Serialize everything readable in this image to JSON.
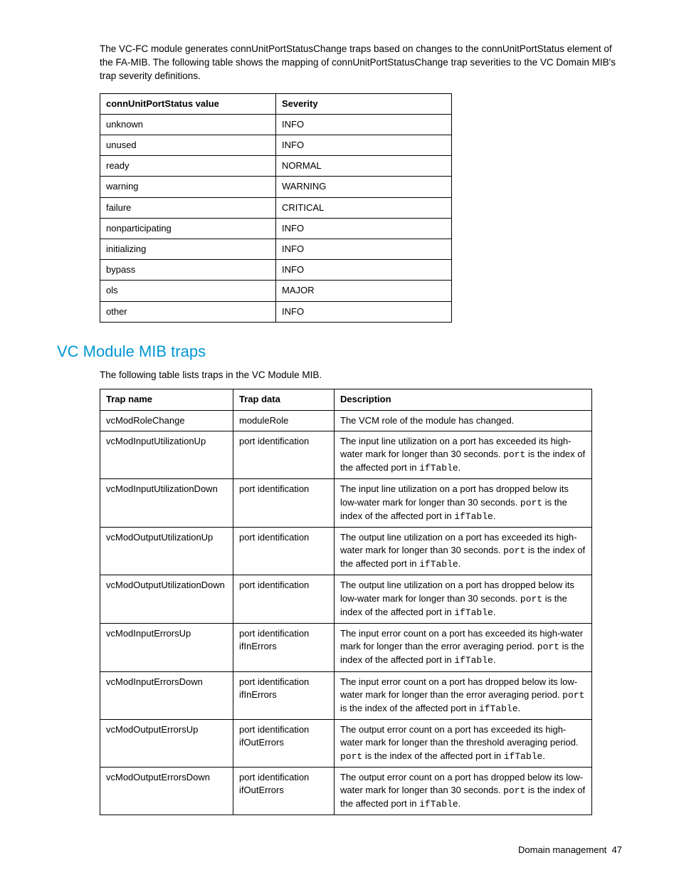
{
  "intro": "The VC-FC module generates connUnitPortStatusChange traps based on changes to the connUnitPortStatus element of the FA-MIB. The following table shows the mapping of connUnitPortStatusChange trap severities to the VC Domain MIB's trap severity definitions.",
  "table1": {
    "headers": [
      "connUnitPortStatus value",
      "Severity"
    ],
    "rows": [
      [
        "unknown",
        "INFO"
      ],
      [
        "unused",
        "INFO"
      ],
      [
        "ready",
        "NORMAL"
      ],
      [
        "warning",
        "WARNING"
      ],
      [
        "failure",
        "CRITICAL"
      ],
      [
        "nonparticipating",
        "INFO"
      ],
      [
        "initializing",
        "INFO"
      ],
      [
        "bypass",
        "INFO"
      ],
      [
        "ols",
        "MAJOR"
      ],
      [
        "other",
        "INFO"
      ]
    ]
  },
  "section_title": "VC Module MIB traps",
  "section_sub": "The following table lists traps in the VC Module MIB.",
  "table2": {
    "headers": [
      "Trap name",
      "Trap data",
      "Description"
    ],
    "rows": [
      {
        "name": "vcModRoleChange",
        "data": "moduleRole",
        "desc": "The VCM role of the module has changed."
      },
      {
        "name": "vcModInputUtilizationUp",
        "data": "port identification",
        "desc": "The input line utilization on a port has exceeded its high-water mark for longer than 30 seconds. <code>port</code> is the index of the affected port in <code>ifTable</code>."
      },
      {
        "name": "vcModInputUtilizationDown",
        "data": "port identification",
        "desc": "The input line utilization on a port has dropped below its low-water mark for longer than 30 seconds. <code>port</code> is the index of the affected port in <code>ifTable</code>."
      },
      {
        "name": "vcModOutputUtilizationUp",
        "data": "port identification",
        "desc": "The output line utilization on a port has exceeded its high-water mark for longer than 30 seconds. <code>port</code> is the index of the affected port in <code>ifTable</code>."
      },
      {
        "name": "vcModOutputUtilizationDown",
        "data": "port identification",
        "desc": "The output line utilization on a port has dropped below its low-water mark for longer than 30 seconds. <code>port</code> is the index of the affected port in <code>ifTable</code>."
      },
      {
        "name": "vcModInputErrorsUp",
        "data": "port identification ifInErrors",
        "desc": "The input error count on a port has exceeded its high-water mark for longer than the error averaging period. <code>port</code> is the index of the affected port in <code>ifTable</code>."
      },
      {
        "name": "vcModInputErrorsDown",
        "data": "port identification ifInErrors",
        "desc": "The input error count on a port has dropped below its low-water mark for longer than the error averaging period. <code>port</code> is the index of the affected port in <code>ifTable</code>."
      },
      {
        "name": "vcModOutputErrorsUp",
        "data": "port identification ifOutErrors",
        "desc": "The output error count on a port has exceeded its high-water mark for longer than the threshold averaging period. <code>port</code> is the index of the affected port in <code>ifTable</code>."
      },
      {
        "name": "vcModOutputErrorsDown",
        "data": "port identification ifOutErrors",
        "desc": "The output error count on a port has dropped below its low-water mark for longer than 30 seconds. <code>port</code> is the index of the affected port in <code>ifTable</code>."
      }
    ]
  },
  "footer_label": "Domain management",
  "footer_page": "47"
}
